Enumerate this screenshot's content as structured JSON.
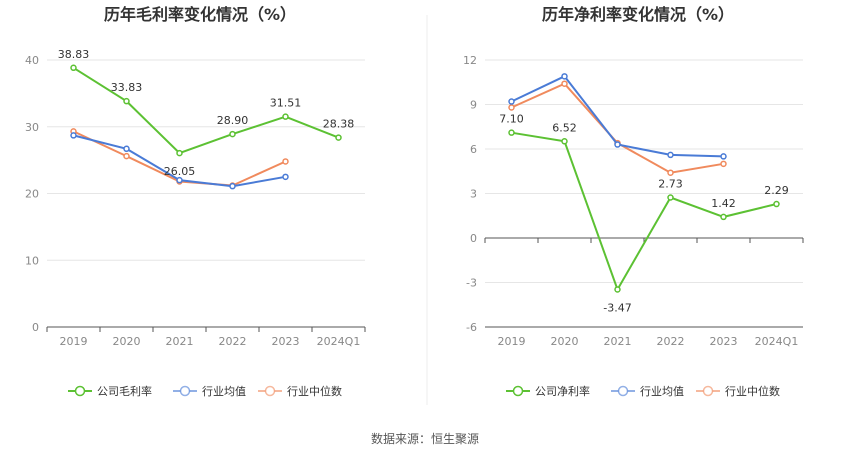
{
  "source_label": "数据来源：恒生聚源",
  "chart_data": [
    {
      "type": "line",
      "title": "历年毛利率变化情况（%）",
      "categories": [
        "2019",
        "2020",
        "2021",
        "2022",
        "2023",
        "2024Q1"
      ],
      "ylim": [
        0,
        40
      ],
      "yticks": [
        0,
        10,
        20,
        30,
        40
      ],
      "grid": true,
      "legend_position": "bottom",
      "series": [
        {
          "name": "公司毛利率",
          "color": "#5cc133",
          "values": [
            38.83,
            33.83,
            26.05,
            28.9,
            31.51,
            28.38
          ],
          "labels": [
            "38.83",
            "33.83",
            "26.05",
            "28.90",
            "31.51",
            "28.38"
          ]
        },
        {
          "name": "行业均值",
          "color": "#4a7bd6",
          "values": [
            28.7,
            26.7,
            22.0,
            21.1,
            22.5,
            null
          ]
        },
        {
          "name": "行业中位数",
          "color": "#f08a5d",
          "values": [
            29.3,
            25.6,
            21.8,
            21.2,
            24.8,
            null
          ]
        }
      ]
    },
    {
      "type": "line",
      "title": "历年净利率变化情况（%）",
      "categories": [
        "2019",
        "2020",
        "2021",
        "2022",
        "2023",
        "2024Q1"
      ],
      "ylim": [
        -6,
        12
      ],
      "yticks": [
        -6,
        -3,
        0,
        3,
        6,
        9,
        12
      ],
      "grid": true,
      "legend_position": "bottom",
      "series": [
        {
          "name": "公司净利率",
          "color": "#5cc133",
          "values": [
            7.1,
            6.52,
            -3.47,
            2.73,
            1.42,
            2.29
          ],
          "labels": [
            "7.10",
            "6.52",
            "-3.47",
            "2.73",
            "1.42",
            "2.29"
          ]
        },
        {
          "name": "行业均值",
          "color": "#4a7bd6",
          "values": [
            9.2,
            10.9,
            6.3,
            5.6,
            5.5,
            null
          ]
        },
        {
          "name": "行业中位数",
          "color": "#f08a5d",
          "values": [
            8.8,
            10.4,
            6.4,
            4.4,
            5.0,
            null
          ]
        }
      ]
    }
  ]
}
